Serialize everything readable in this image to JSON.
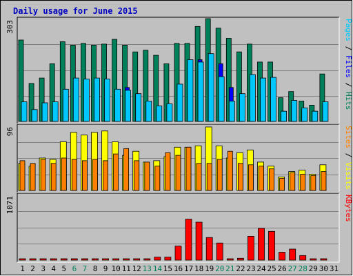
{
  "chart_data": {
    "type": "bar",
    "title": "Daily usage for June 2015",
    "categories": [
      "1",
      "2",
      "3",
      "4",
      "5",
      "6",
      "7",
      "8",
      "9",
      "10",
      "11",
      "12",
      "13",
      "14",
      "15",
      "16",
      "17",
      "18",
      "19",
      "20",
      "21",
      "22",
      "23",
      "24",
      "25",
      "26",
      "27",
      "28",
      "29",
      "30",
      "31"
    ],
    "weekend_days": [
      "6",
      "7",
      "13",
      "14",
      "20",
      "21",
      "27",
      "28"
    ],
    "panels": [
      {
        "id": "hits-files-pages",
        "ymax_label": "303",
        "ylim": [
          0,
          303
        ],
        "legend": [
          {
            "text": "Pages",
            "color": "#00c8ff"
          },
          {
            "text": " / ",
            "color": "#000000"
          },
          {
            "text": "Files",
            "color": "#0000ff"
          },
          {
            "text": " / ",
            "color": "#000000"
          },
          {
            "text": "Hits",
            "color": "#00805a"
          }
        ],
        "series": [
          {
            "name": "Hits",
            "color": "#00805a",
            "values": [
              240,
              112,
              128,
              170,
              235,
              225,
              230,
              225,
              228,
              242,
              225,
              205,
              210,
              195,
              170,
              230,
              230,
              280,
              303,
              275,
              245,
              205,
              228,
              175,
              175,
              70,
              88,
              60,
              48,
              140,
              0
            ]
          },
          {
            "name": "Files",
            "color": "#0000ff",
            "values": [
              50,
              30,
              50,
              50,
              70,
              100,
              100,
              100,
              102,
              80,
              100,
              80,
              50,
              40,
              40,
              110,
              80,
              182,
              175,
              170,
              100,
              80,
              100,
              82,
              100,
              30,
              55,
              30,
              30,
              50,
              0
            ]
          },
          {
            "name": "Pages",
            "color": "#00c8ff",
            "values": [
              58,
              35,
              55,
              58,
              95,
              128,
              125,
              128,
              125,
              95,
              92,
              82,
              60,
              46,
              52,
              110,
              182,
              175,
              200,
              132,
              60,
              82,
              138,
              128,
              130,
              30,
              62,
              40,
              30,
              58,
              0
            ]
          }
        ]
      },
      {
        "id": "visits-sites",
        "ymax_label": "96",
        "ylim": [
          0,
          96
        ],
        "legend": [
          {
            "text": "Sites",
            "color": "#ff8000"
          },
          {
            "text": " / ",
            "color": "#000000"
          },
          {
            "text": "Visits",
            "color": "#ffff00"
          }
        ],
        "series": [
          {
            "name": "Visits",
            "color": "#ffff00",
            "values": [
              40,
              36,
              48,
              46,
              72,
              86,
              82,
              86,
              88,
              72,
              52,
              58,
              42,
              44,
              50,
              64,
              64,
              66,
              94,
              66,
              48,
              56,
              60,
              42,
              36,
              20,
              28,
              30,
              24,
              38,
              0
            ]
          },
          {
            "name": "Sites",
            "color": "#ff8000",
            "values": [
              44,
              40,
              46,
              40,
              48,
              46,
              44,
              46,
              44,
              54,
              62,
              44,
              42,
              36,
              56,
              52,
              64,
              40,
              40,
              46,
              58,
              40,
              38,
              36,
              32,
              18,
              26,
              24,
              22,
              28,
              0
            ]
          }
        ]
      },
      {
        "id": "kbytes",
        "ymax_label": "1071",
        "ylim": [
          0,
          1071
        ],
        "legend": [
          {
            "text": "KBytes",
            "color": "#ff0000"
          }
        ],
        "series": [
          {
            "name": "KBytes",
            "color": "#ff0000",
            "values": [
              10,
              10,
              10,
              10,
              10,
              10,
              10,
              10,
              10,
              20,
              10,
              10,
              10,
              50,
              50,
              230,
              670,
              620,
              370,
              280,
              10,
              30,
              390,
              520,
              470,
              130,
              180,
              75,
              15,
              10,
              0
            ]
          }
        ]
      }
    ]
  }
}
